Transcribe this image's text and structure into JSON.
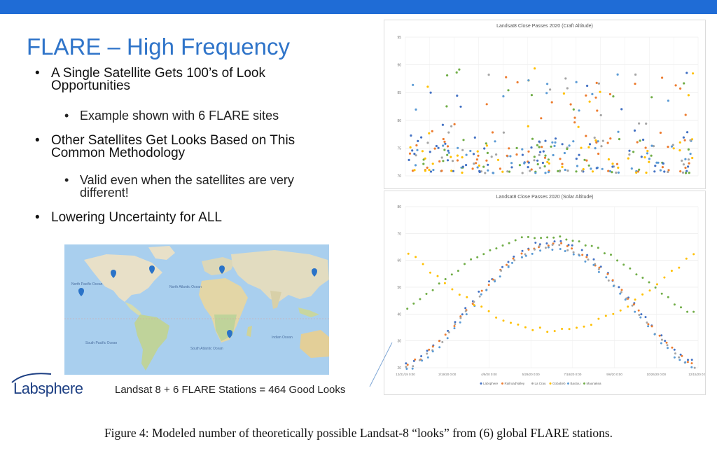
{
  "slide": {
    "title": "FLARE – High Frequency",
    "bullets": [
      {
        "text": "A Single Satellite Gets 100’s of Look Opportunities",
        "sub": "Example shown with 6 FLARE sites"
      },
      {
        "text": "Other Satellites Get Looks Based on This Common Methodology",
        "sub": "Valid even when the satellites are very different!"
      },
      {
        "text": "Lowering Uncertainty for ALL",
        "sub": ""
      }
    ],
    "map_caption": "Landsat 8 + 6 FLARE Stations = 464 Good Looks",
    "logo": "Labsphere",
    "colors": {
      "title": "#2f74c9",
      "topbar": "#1f6cd6"
    }
  },
  "map": {
    "labels": {
      "north_pacific": "North Pacific Ocean",
      "north_atlantic": "North Atlantic Ocean",
      "south_pacific": "South Pacific Ocean",
      "south_atlantic": "South Atlantic Ocean",
      "indian": "Indian Ocean"
    },
    "markers": 6
  },
  "chart_data": [
    {
      "type": "scatter",
      "title": "Landsat8 Close Passes 2020 (Craft Altitude)",
      "ylim": [
        70,
        95
      ],
      "yticks": [
        "95",
        "90",
        "85",
        "80",
        "75",
        "70"
      ],
      "grid": true,
      "note": "dense scatter of pass elevations, roughly 70–90 deg across 2020 for six sites"
    },
    {
      "type": "scatter",
      "title": "Landsat8 Close Passes 2020 (Solar Altitude)",
      "ylim": [
        20,
        80
      ],
      "yticks": [
        "80",
        "70",
        "60",
        "50",
        "40",
        "30",
        "20"
      ],
      "xticks": [
        "12/31/19 0:00",
        "2/19/20 0:00",
        "4/9/20 0:00",
        "5/29/20 0:00",
        "7/18/20 0:00",
        "9/6/20 0:00",
        "10/26/20 0:00",
        "12/15/20 0:00"
      ],
      "legend_position": "bottom",
      "series": [
        {
          "name": "Labsphere",
          "color": "#4472c4"
        },
        {
          "name": "RailroadValley",
          "color": "#ed7d31"
        },
        {
          "name": "La Crau",
          "color": "#a5a5a5"
        },
        {
          "name": "Gobabeb",
          "color": "#ffc000"
        },
        {
          "name": "Baotou",
          "color": "#5b9bd5"
        },
        {
          "name": "Maunakea",
          "color": "#70ad47"
        }
      ]
    }
  ],
  "figure_caption": "Figure 4: Modeled number of theoretically possible Landsat-8 “looks” from (6) global FLARE stations."
}
